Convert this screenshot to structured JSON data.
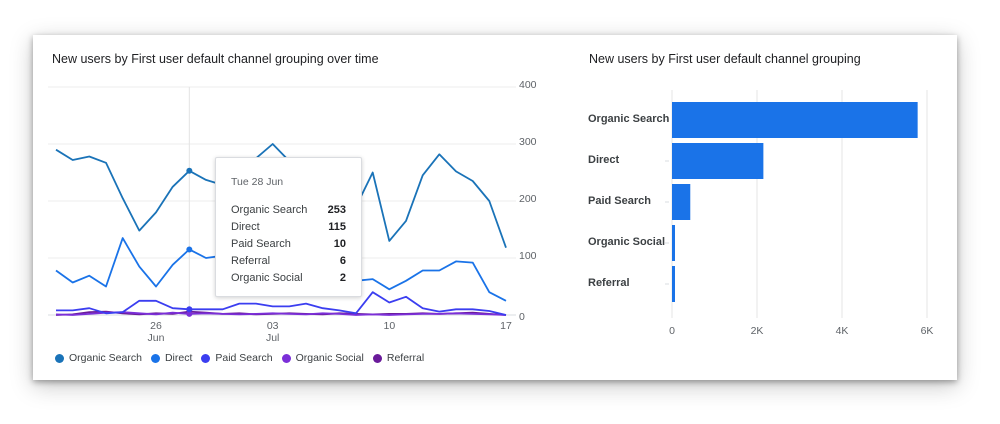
{
  "line_panel": {
    "title": "New users by First user default channel grouping over time",
    "tooltip": {
      "date": "Tue 28 Jun",
      "rows": [
        {
          "label": "Organic Search",
          "value": "253"
        },
        {
          "label": "Direct",
          "value": "115"
        },
        {
          "label": "Paid Search",
          "value": "10"
        },
        {
          "label": "Referral",
          "value": "6"
        },
        {
          "label": "Organic Social",
          "value": "2"
        }
      ]
    },
    "y_ticks": [
      "400",
      "300",
      "200",
      "100",
      "0"
    ],
    "x_ticks": [
      {
        "day": "26",
        "month": "Jun"
      },
      {
        "day": "03",
        "month": "Jul"
      },
      {
        "day": "10",
        "month": ""
      },
      {
        "day": "17",
        "month": ""
      }
    ],
    "legend": [
      {
        "label": "Organic Search",
        "color": "#1a73b8"
      },
      {
        "label": "Direct",
        "color": "#1a73e8"
      },
      {
        "label": "Paid Search",
        "color": "#3b3ef0"
      },
      {
        "label": "Organic Social",
        "color": "#7b2fd8"
      },
      {
        "label": "Referral",
        "color": "#6a1b9a"
      }
    ]
  },
  "bar_panel": {
    "title": "New users by First user default channel grouping",
    "categories": [
      "Organic Search",
      "Direct",
      "Paid Search",
      "Organic Social",
      "Referral"
    ],
    "x_ticks": [
      "0",
      "2K",
      "4K",
      "6K"
    ],
    "bar_color": "#1a73e8"
  },
  "chart_data": [
    {
      "type": "line",
      "title": "New users by First user default channel grouping over time",
      "xlabel": "",
      "ylabel": "",
      "ylim": [
        0,
        400
      ],
      "yticks": [
        0,
        100,
        200,
        300,
        400
      ],
      "y_axis_position": "right",
      "grid": true,
      "legend_position": "bottom",
      "x": [
        "20 Jun",
        "21 Jun",
        "22 Jun",
        "23 Jun",
        "24 Jun",
        "25 Jun",
        "26 Jun",
        "27 Jun",
        "28 Jun",
        "29 Jun",
        "30 Jun",
        "01 Jul",
        "02 Jul",
        "03 Jul",
        "04 Jul",
        "05 Jul",
        "06 Jul",
        "07 Jul",
        "08 Jul",
        "09 Jul",
        "10 Jul",
        "11 Jul",
        "12 Jul",
        "13 Jul",
        "14 Jul",
        "15 Jul",
        "16 Jul",
        "17 Jul"
      ],
      "xtick_labels": [
        "26 Jun",
        "03 Jul",
        "10",
        "17"
      ],
      "series": [
        {
          "name": "Organic Search",
          "color": "#1a73b8",
          "values": [
            290,
            272,
            278,
            267,
            205,
            148,
            180,
            225,
            253,
            237,
            228,
            250,
            275,
            300,
            270,
            240,
            220,
            165,
            190,
            250,
            130,
            165,
            245,
            282,
            252,
            235,
            200,
            118
          ]
        },
        {
          "name": "Direct",
          "color": "#1a73e8",
          "values": [
            78,
            57,
            69,
            50,
            135,
            85,
            50,
            88,
            115,
            100,
            104,
            110,
            120,
            112,
            108,
            104,
            100,
            70,
            60,
            63,
            45,
            60,
            78,
            78,
            94,
            92,
            40,
            25
          ]
        },
        {
          "name": "Paid Search",
          "color": "#3b3ef0",
          "values": [
            8,
            8,
            12,
            3,
            5,
            25,
            25,
            12,
            10,
            10,
            10,
            20,
            20,
            15,
            15,
            20,
            12,
            8,
            3,
            40,
            22,
            32,
            12,
            6,
            10,
            10,
            7,
            0
          ]
        },
        {
          "name": "Organic Social",
          "color": "#7b2fd8",
          "values": [
            1,
            0,
            2,
            4,
            5,
            3,
            1,
            4,
            2,
            3,
            2,
            1,
            2,
            3,
            2,
            1,
            3,
            2,
            0,
            1,
            0,
            1,
            2,
            2,
            3,
            2,
            1,
            0
          ]
        },
        {
          "name": "Referral",
          "color": "#6a1b9a",
          "values": [
            0,
            1,
            5,
            6,
            3,
            1,
            3,
            2,
            6,
            4,
            2,
            3,
            1,
            2,
            3,
            2,
            1,
            3,
            2,
            1,
            2,
            2,
            3,
            2,
            3,
            4,
            2,
            0
          ]
        }
      ],
      "annotations": [
        {
          "type": "tooltip",
          "x": "28 Jun",
          "text": "Tue 28 Jun: Organic Search 253, Direct 115, Paid Search 10, Referral 6, Organic Social 2"
        }
      ]
    },
    {
      "type": "bar",
      "orientation": "horizontal",
      "title": "New users by First user default channel grouping",
      "categories": [
        "Organic Search",
        "Direct",
        "Paid Search",
        "Organic Social",
        "Referral"
      ],
      "values": [
        5780,
        2150,
        430,
        60,
        55
      ],
      "xlabel": "",
      "ylabel": "",
      "xlim": [
        0,
        6000
      ],
      "xticks": [
        "0",
        "2K",
        "4K",
        "6K"
      ],
      "grid": true
    }
  ]
}
